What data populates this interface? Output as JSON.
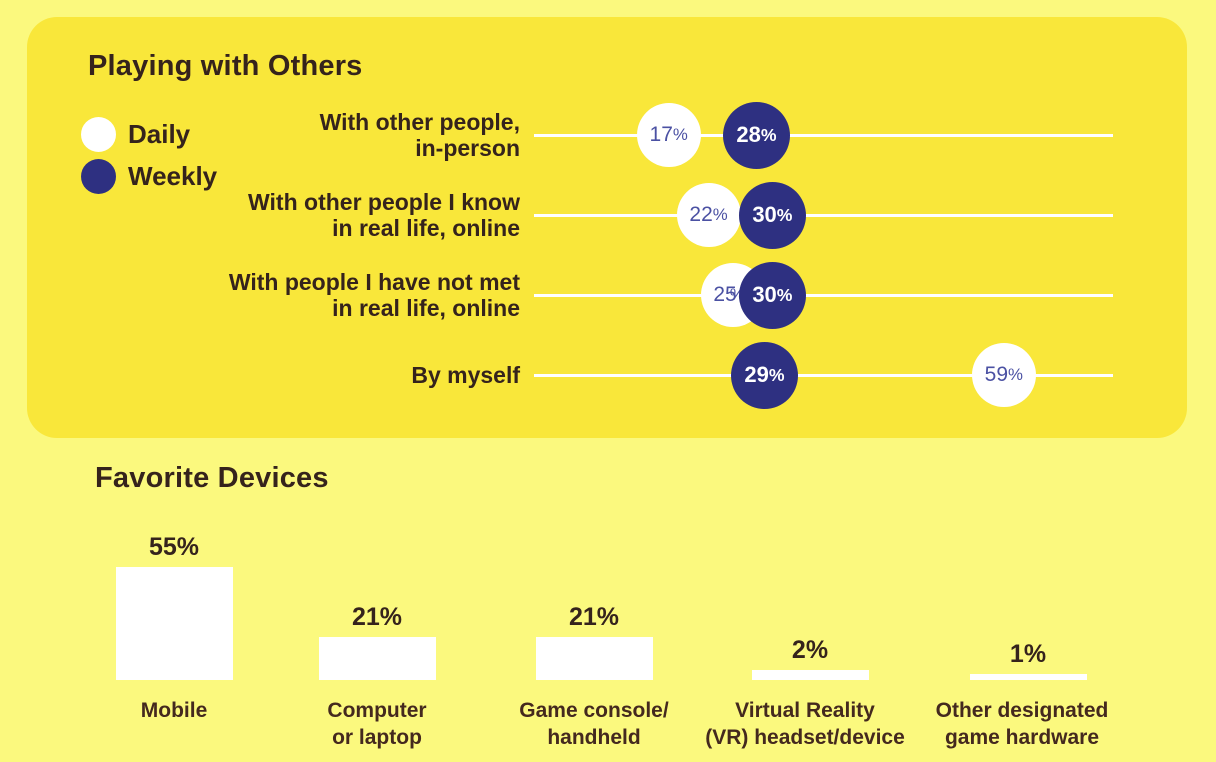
{
  "colors": {
    "page_background": "#fbf97e",
    "panel_background": "#f9e73a",
    "weekly_navy": "#2e3081",
    "daily_white": "#ffffff",
    "daily_value_text": "#4b51a3",
    "weekly_value_text": "#ffffff",
    "heading_text": "#35231c",
    "label_text": "#44291e",
    "axis_line": "#ffffff"
  },
  "playing_with_others": {
    "title": "Playing with Others",
    "legend": [
      {
        "label": "Daily",
        "color": "#ffffff"
      },
      {
        "label": "Weekly",
        "color": "#2e3081"
      }
    ]
  },
  "favorite_devices": {
    "title": "Favorite Devices"
  },
  "chart_data": [
    {
      "type": "scatter",
      "title": "Playing with Others",
      "value_format": "percent",
      "xlim": [
        0,
        73
      ],
      "grid": false,
      "legend_position": "top-left",
      "legend_entries": [
        "Daily",
        "Weekly"
      ],
      "categories": [
        "With other people, in-person",
        "With other people I know in real life, online",
        "With people I have not met in real life, online",
        "By myself"
      ],
      "category_label_lines": [
        [
          "With other people,",
          "in-person"
        ],
        [
          "With other people I know",
          "in real life, online"
        ],
        [
          "With people I have not met",
          "in real life, online"
        ],
        [
          "By myself"
        ]
      ],
      "series": [
        {
          "name": "Daily",
          "values": [
            17,
            22,
            25,
            59
          ]
        },
        {
          "name": "Weekly",
          "values": [
            28,
            30,
            30,
            29
          ]
        }
      ]
    },
    {
      "type": "bar",
      "title": "Favorite Devices",
      "value_format": "percent",
      "ylim": [
        0,
        60
      ],
      "grid": false,
      "categories": [
        "Mobile",
        "Computer or laptop",
        "Game console/handheld",
        "Virtual Reality (VR) headset/device",
        "Other designated game hardware"
      ],
      "category_label_lines": [
        [
          "Mobile"
        ],
        [
          "Computer",
          "or laptop"
        ],
        [
          "Game console/",
          "handheld"
        ],
        [
          "Virtual Reality",
          "(VR) headset/device"
        ],
        [
          "Other designated",
          "game hardware"
        ]
      ],
      "values": [
        55,
        21,
        21,
        2,
        1
      ],
      "value_labels": [
        "55%",
        "21%",
        "21%",
        "2%",
        "1%"
      ]
    }
  ]
}
